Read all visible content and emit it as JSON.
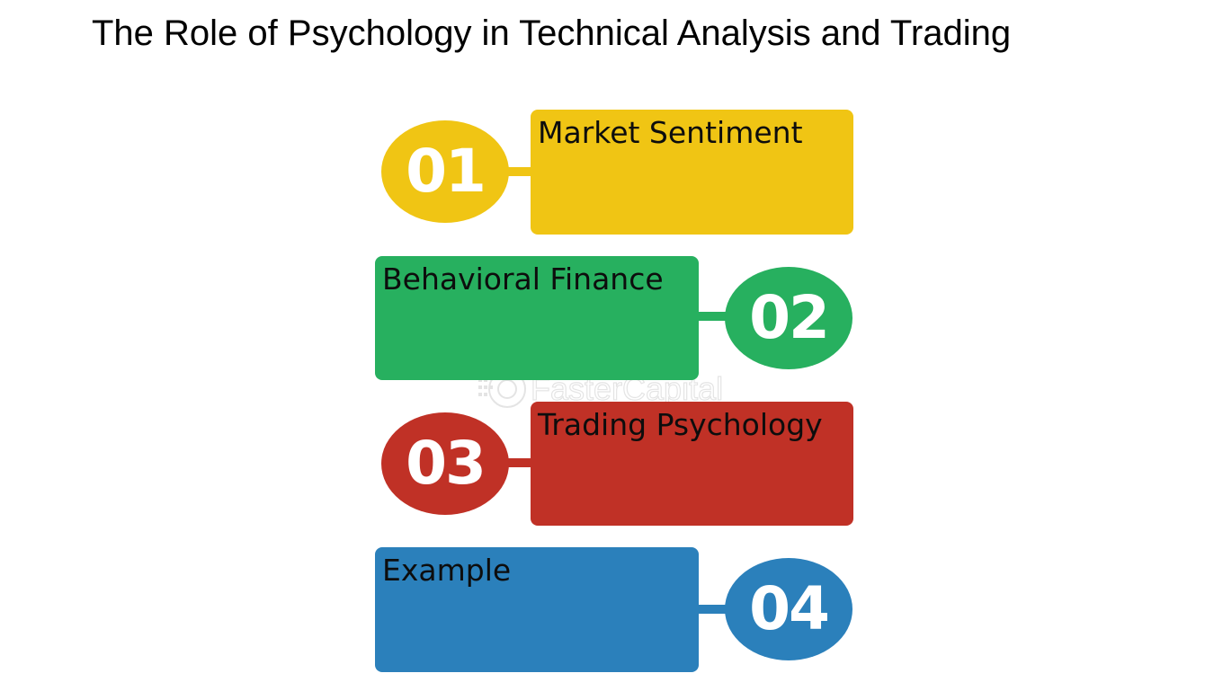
{
  "title": "The Role of Psychology in Technical Analysis and Trading",
  "watermark": "FasterCapital",
  "steps": [
    {
      "number": "01",
      "label": "Market Sentiment",
      "color": "#f0c514"
    },
    {
      "number": "02",
      "label": "Behavioral Finance",
      "color": "#27b05f"
    },
    {
      "number": "03",
      "label": "Trading Psychology",
      "color": "#c03126"
    },
    {
      "number": "04",
      "label": "Example",
      "color": "#2b80bb"
    }
  ]
}
